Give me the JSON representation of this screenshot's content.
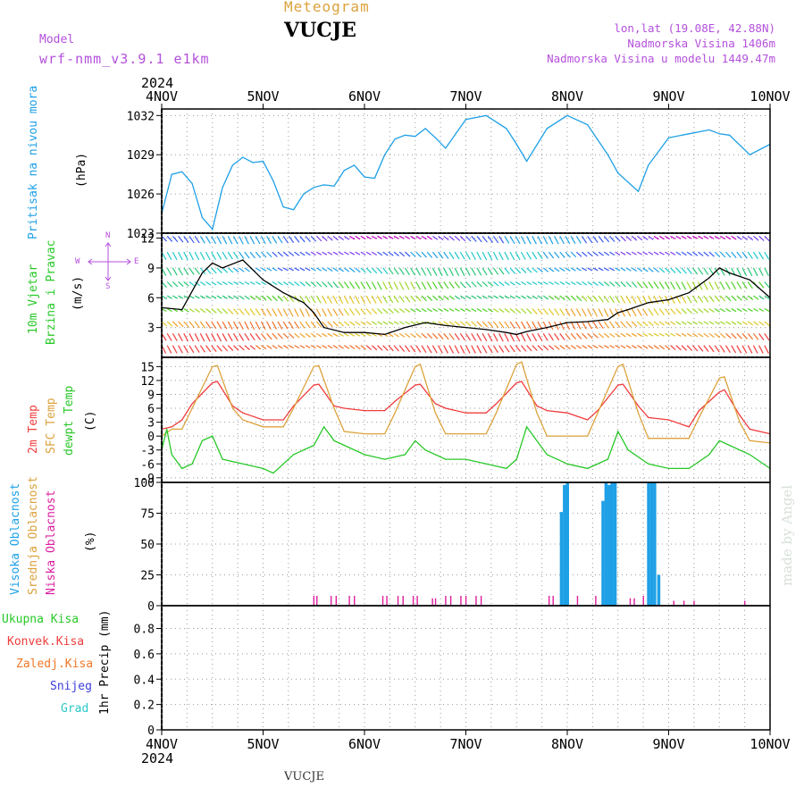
{
  "header": {
    "subtitle": "Meteogram",
    "station": "VUCJE",
    "model_label": "Model",
    "model_name": "wrf-nmm_v3.9.1 e1km",
    "coords": "lon,lat (19.08E, 42.88N)",
    "elevation": "Nadmorska Visina 1406m",
    "model_elevation": "Nadmorska Visina u modelu 1449.47m",
    "year_top": "2024",
    "year_bottom": "2024",
    "footer_station": "VUCJE",
    "watermark": "made by Angel"
  },
  "colors": {
    "pressure": "#1ea0e6",
    "temp2m": "#f03c3c",
    "sfc": "#dca23c",
    "dewpt": "#28c828",
    "high": "#1ea0e6",
    "mid": "#dca23c",
    "low": "#dc1ea0",
    "total": "#28c828",
    "konv": "#f03c3c",
    "frz": "#f07828",
    "snow": "#3c3cdc",
    "grad": "#28c8c8",
    "label_purple": "#b450dc"
  },
  "labels": {
    "pressure": [
      "Pritisak na nivou mora",
      "(hPa)"
    ],
    "wind": [
      "10m Vjetar",
      "Brzina i Pravac",
      "(m/s)"
    ],
    "compass": [
      "N",
      "W",
      "E",
      "S"
    ],
    "temp": [
      "2m Temp",
      "SFC Temp",
      "dewpt Temp",
      "(C)"
    ],
    "cloud": [
      "Visoka Oblacnost",
      "Srednja Oblacnost",
      "Niska Oblacnost",
      "(%)"
    ],
    "precip": [
      "Ukupna Kisa",
      "Konvek.Kisa",
      "Zaledj.Kisa",
      "Snijeg",
      "Grad",
      "1hr Precip (mm)"
    ]
  },
  "chart_data": [
    {
      "type": "line",
      "name": "pressure",
      "x_ticks": [
        "4NOV",
        "5NOV",
        "6NOV",
        "7NOV",
        "8NOV",
        "9NOV",
        "10NOV"
      ],
      "ylim": [
        1023,
        1032.5
      ],
      "yticks": [
        1023,
        1026,
        1029,
        1032
      ],
      "series": [
        {
          "color_key": "pressure",
          "x": [
            0,
            0.1,
            0.2,
            0.3,
            0.4,
            0.5,
            0.6,
            0.7,
            0.8,
            0.9,
            1,
            1.1,
            1.2,
            1.3,
            1.4,
            1.5,
            1.6,
            1.7,
            1.8,
            1.9,
            2,
            2.1,
            2.2,
            2.3,
            2.4,
            2.5,
            2.6,
            2.7,
            2.8,
            2.9,
            3,
            3.2,
            3.4,
            3.5,
            3.6,
            3.8,
            4,
            4.2,
            4.4,
            4.5,
            4.7,
            4.8,
            5,
            5.2,
            5.4,
            5.5,
            5.6,
            5.8,
            6
          ],
          "y": [
            1024.5,
            1027.5,
            1027.7,
            1026.8,
            1024.2,
            1023.3,
            1026.5,
            1028.2,
            1028.8,
            1028.4,
            1028.5,
            1027.0,
            1025.0,
            1024.8,
            1026.0,
            1026.5,
            1026.7,
            1026.6,
            1027.8,
            1028.2,
            1027.3,
            1027.2,
            1029.0,
            1030.2,
            1030.5,
            1030.4,
            1031.0,
            1030.3,
            1029.5,
            1030.6,
            1031.7,
            1032.0,
            1031.0,
            1029.8,
            1028.5,
            1031.0,
            1032.0,
            1031.3,
            1029.0,
            1027.6,
            1026.2,
            1028.2,
            1030.3,
            1030.6,
            1030.9,
            1030.6,
            1030.5,
            1029.0,
            1029.8
          ]
        }
      ]
    },
    {
      "type": "line",
      "name": "wind",
      "ylim": [
        0,
        12.5
      ],
      "yticks": [
        3,
        6,
        9,
        12
      ],
      "series": [
        {
          "name": "speed",
          "color": "#000000",
          "x": [
            0,
            0.2,
            0.4,
            0.5,
            0.6,
            0.8,
            1,
            1.2,
            1.4,
            1.5,
            1.6,
            1.8,
            2,
            2.2,
            2.4,
            2.6,
            2.8,
            3,
            3.2,
            3.4,
            3.5,
            3.6,
            3.8,
            4,
            4.2,
            4.4,
            4.5,
            4.6,
            4.8,
            5,
            5.2,
            5.4,
            5.5,
            5.6,
            5.8,
            6
          ],
          "y": [
            5.0,
            4.8,
            8.5,
            9.5,
            9.0,
            9.8,
            7.8,
            6.5,
            5.5,
            4.5,
            3.0,
            2.5,
            2.5,
            2.3,
            3.0,
            3.5,
            3.2,
            3.0,
            2.8,
            2.5,
            2.3,
            2.6,
            3.0,
            3.5,
            3.6,
            3.8,
            4.5,
            4.8,
            5.5,
            5.8,
            6.5,
            8.0,
            9.0,
            8.5,
            7.8,
            6.0
          ]
        }
      ]
    },
    {
      "type": "line",
      "name": "temperature",
      "ylim": [
        -10,
        17
      ],
      "yticks": [
        -9,
        -6,
        -3,
        0,
        3,
        6,
        9,
        12,
        15
      ],
      "series": [
        {
          "name": "2m Temp",
          "color_key": "temp2m",
          "x": [
            0,
            0.1,
            0.2,
            0.3,
            0.5,
            0.55,
            0.7,
            0.8,
            1,
            1.2,
            1.3,
            1.5,
            1.55,
            1.7,
            1.8,
            2,
            2.2,
            2.3,
            2.5,
            2.55,
            2.7,
            2.8,
            3,
            3.2,
            3.3,
            3.5,
            3.55,
            3.7,
            3.8,
            4,
            4.2,
            4.3,
            4.5,
            4.55,
            4.7,
            4.8,
            5,
            5.2,
            5.3,
            5.5,
            5.55,
            5.7,
            5.8,
            6
          ],
          "y": [
            1.5,
            2.0,
            3.5,
            7,
            11.5,
            11.8,
            6.5,
            5.0,
            3.5,
            3.5,
            6.5,
            11.0,
            11.2,
            6.5,
            6.0,
            5.5,
            5.5,
            7.5,
            11.0,
            11.2,
            7.0,
            6.0,
            5.0,
            5.0,
            7.0,
            11.5,
            11.8,
            6.5,
            5.5,
            5.0,
            3.5,
            5.5,
            11.0,
            11.2,
            6.5,
            4.0,
            3.5,
            2.0,
            5.5,
            9.5,
            10.0,
            4.5,
            1.5,
            0.5
          ]
        },
        {
          "name": "SFC Temp",
          "color_key": "sfc",
          "x": [
            0,
            0.1,
            0.2,
            0.3,
            0.5,
            0.55,
            0.7,
            0.8,
            1,
            1.2,
            1.3,
            1.5,
            1.55,
            1.7,
            1.8,
            2,
            2.2,
            2.3,
            2.5,
            2.55,
            2.7,
            2.8,
            3,
            3.2,
            3.3,
            3.5,
            3.55,
            3.7,
            3.8,
            4,
            4.2,
            4.3,
            4.5,
            4.55,
            4.7,
            4.8,
            5,
            5.2,
            5.3,
            5.5,
            5.55,
            5.7,
            5.8,
            6
          ],
          "y": [
            0,
            1.5,
            1.5,
            6,
            15.0,
            15.2,
            6.0,
            3.5,
            2.0,
            2.0,
            6.0,
            15.0,
            15.2,
            6.0,
            1.0,
            0.5,
            0.5,
            5.0,
            15.0,
            15.5,
            5.0,
            0.5,
            0.5,
            0.5,
            5.0,
            15.5,
            16.0,
            5.0,
            0.0,
            0.0,
            0.0,
            5.0,
            15.0,
            15.5,
            5.0,
            -0.5,
            -0.5,
            -0.5,
            4.0,
            12.5,
            12.8,
            3.0,
            -1.0,
            -1.5
          ]
        },
        {
          "name": "dewpt Temp",
          "color_key": "dewpt",
          "x": [
            0,
            0.05,
            0.1,
            0.2,
            0.3,
            0.4,
            0.5,
            0.6,
            0.8,
            1,
            1.1,
            1.3,
            1.5,
            1.6,
            1.7,
            1.8,
            2,
            2.2,
            2.4,
            2.5,
            2.6,
            2.8,
            3,
            3.2,
            3.4,
            3.5,
            3.6,
            3.8,
            4,
            4.2,
            4.4,
            4.5,
            4.6,
            4.8,
            5,
            5.2,
            5.4,
            5.5,
            5.6,
            5.8,
            6
          ],
          "y": [
            -3,
            1.5,
            -4,
            -7,
            -6,
            -1,
            0,
            -5,
            -6,
            -7,
            -8,
            -4,
            -2,
            2,
            -1,
            -2,
            -4,
            -5,
            -4,
            -1,
            -3,
            -5,
            -5,
            -6,
            -7,
            -5,
            2,
            -4,
            -6,
            -7,
            -5,
            1,
            -3,
            -6,
            -7,
            -7,
            -4,
            -1,
            -2,
            -4,
            -7
          ]
        }
      ]
    },
    {
      "type": "bar",
      "name": "cloud",
      "ylim": [
        0,
        100
      ],
      "yticks": [
        0,
        25,
        50,
        75,
        100
      ],
      "high_bars": [
        [
          3.94,
          76
        ],
        [
          3.97,
          98
        ],
        [
          4.0,
          100
        ],
        [
          4.35,
          85
        ],
        [
          4.38,
          100
        ],
        [
          4.41,
          98
        ],
        [
          4.44,
          100
        ],
        [
          4.47,
          100
        ],
        [
          4.8,
          100
        ],
        [
          4.83,
          100
        ],
        [
          4.86,
          100
        ],
        [
          4.9,
          25
        ]
      ],
      "low_bars": [
        [
          1.5,
          8
        ],
        [
          1.53,
          8
        ],
        [
          1.67,
          8
        ],
        [
          1.72,
          8
        ],
        [
          1.85,
          8
        ],
        [
          1.9,
          8
        ],
        [
          2.18,
          8
        ],
        [
          2.22,
          8
        ],
        [
          2.33,
          8
        ],
        [
          2.38,
          8
        ],
        [
          2.48,
          8
        ],
        [
          2.52,
          8
        ],
        [
          2.67,
          6
        ],
        [
          2.7,
          6
        ],
        [
          2.8,
          8
        ],
        [
          2.85,
          8
        ],
        [
          2.95,
          8
        ],
        [
          3.0,
          8
        ],
        [
          3.1,
          8
        ],
        [
          3.15,
          8
        ],
        [
          3.82,
          8
        ],
        [
          3.86,
          8
        ],
        [
          4.1,
          8
        ],
        [
          4.28,
          8
        ],
        [
          4.62,
          6
        ],
        [
          4.66,
          6
        ],
        [
          4.75,
          8
        ],
        [
          5.05,
          4
        ],
        [
          5.15,
          4
        ],
        [
          5.25,
          4
        ],
        [
          5.75,
          4
        ]
      ]
    },
    {
      "type": "bar",
      "name": "precip",
      "ylim": [
        0,
        0.98
      ],
      "yticks": [
        0,
        0.2,
        0.4,
        0.6,
        0.8
      ],
      "values": []
    }
  ]
}
